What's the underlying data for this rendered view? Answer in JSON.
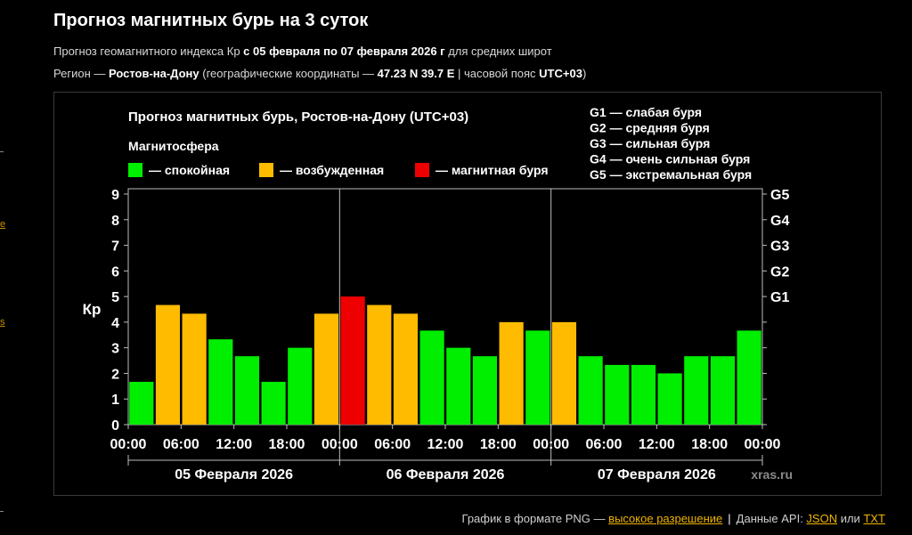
{
  "header": {
    "title": "Прогноз магнитных бурь на 3 суток",
    "subtitle_prefix": "Прогноз геомагнитного индекса Кр ",
    "subtitle_range": "с 05 февраля по 07 февраля 2026 г",
    "subtitle_suffix": " для средних широт",
    "region_prefix": "Регион — ",
    "region_city": "Ростов-на-Дону",
    "region_coords_prefix": " (географические координаты — ",
    "region_coords": "47.23 N 39.7 E",
    "region_tz_prefix": " | часовой пояс ",
    "region_tz": "UTC+03",
    "region_suffix": ")"
  },
  "footer": {
    "png_text": "График в формате PNG — ",
    "png_link": "высокое разрешение",
    "separator": "|",
    "api_text": "Данные API: ",
    "json_link": "JSON",
    "or_text": " или ",
    "txt_link": "TXT"
  },
  "edge": {
    "link1": "e",
    "link2": "s"
  },
  "chart_data": {
    "type": "bar",
    "title": "Прогноз магнитных бурь, Ростов-на-Дону (UTC+03)",
    "legend_title": "Магнитосфера",
    "legend": [
      {
        "label": "— спокойная",
        "color": "#00ee00"
      },
      {
        "label": "— возбужденная",
        "color": "#ffbb00"
      },
      {
        "label": "— магнитная буря",
        "color": "#ee0000"
      }
    ],
    "storm_scale": [
      "G1 — слабая буря",
      "G2 — средняя буря",
      "G3 — сильная буря",
      "G4 — очень сильная буря",
      "G5 — экстремальная буря"
    ],
    "right_axis_labels": [
      {
        "label": "G1",
        "value": 5
      },
      {
        "label": "G2",
        "value": 6
      },
      {
        "label": "G3",
        "value": 7
      },
      {
        "label": "G4",
        "value": 8
      },
      {
        "label": "G5",
        "value": 9
      }
    ],
    "ylabel": "Кр",
    "ylim": [
      0,
      9
    ],
    "yticks": [
      0,
      1,
      2,
      3,
      4,
      5,
      6,
      7,
      8,
      9
    ],
    "xtick_labels": [
      "00:00",
      "06:00",
      "12:00",
      "18:00",
      "00:00",
      "06:00",
      "12:00",
      "18:00",
      "00:00",
      "06:00",
      "12:00",
      "18:00",
      "00:00"
    ],
    "days": [
      "05 Февраля 2026",
      "06 Февраля 2026",
      "07 Февраля 2026"
    ],
    "watermark": "xras.ru",
    "values": [
      1.67,
      4.67,
      4.33,
      3.33,
      2.67,
      1.67,
      3.0,
      4.33,
      5.0,
      4.67,
      4.33,
      3.67,
      3.0,
      2.67,
      4.0,
      3.67,
      4.0,
      2.67,
      2.33,
      2.33,
      2.0,
      2.67,
      2.67,
      3.67
    ],
    "levels": [
      "quiet",
      "active",
      "active",
      "quiet",
      "quiet",
      "quiet",
      "quiet",
      "active",
      "storm",
      "active",
      "active",
      "quiet",
      "quiet",
      "quiet",
      "active",
      "quiet",
      "active",
      "quiet",
      "quiet",
      "quiet",
      "quiet",
      "quiet",
      "quiet",
      "quiet"
    ],
    "colors": {
      "quiet": "#00ee00",
      "active": "#ffbb00",
      "storm": "#ee0000",
      "grid": "#bdbdbd"
    }
  }
}
